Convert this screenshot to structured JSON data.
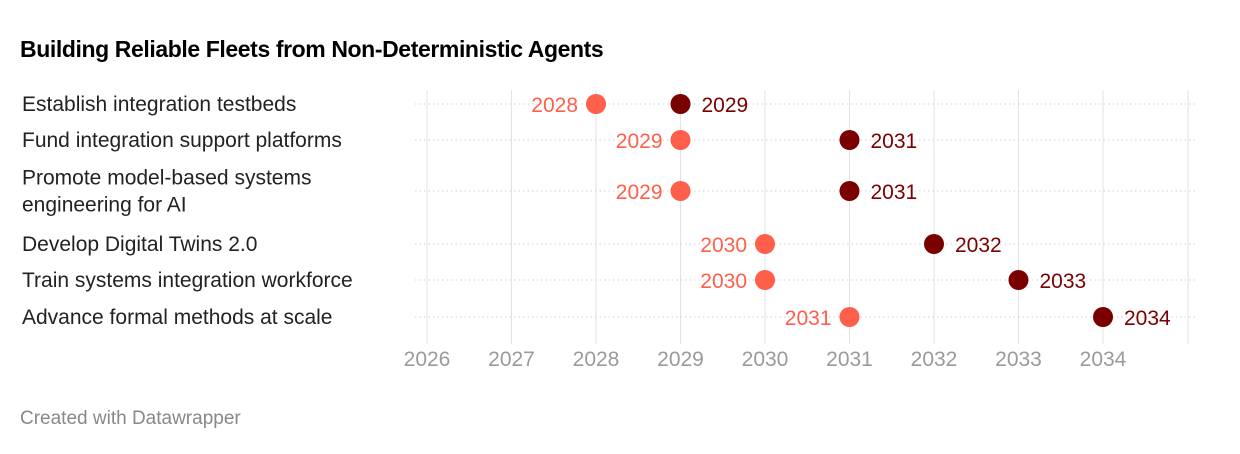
{
  "title": "Building Reliable Fleets from Non-Deterministic Agents",
  "footer": "Created with Datawrapper",
  "colors": {
    "start": "#ff5f4a",
    "end": "#7a0000",
    "grid": "#e3e3e3",
    "tick": "#9a9a9a",
    "label": "#222222"
  },
  "chart_data": {
    "type": "range-dot",
    "title": "Building Reliable Fleets from Non-Deterministic Agents",
    "xlim": [
      2026,
      2034
    ],
    "xticks": [
      "2026",
      "2027",
      "2028",
      "2029",
      "2030",
      "2031",
      "2032",
      "2033",
      "2034"
    ],
    "grid": true,
    "rows": [
      {
        "label": [
          "Establish integration testbeds"
        ],
        "start": 2028,
        "end": 2029
      },
      {
        "label": [
          "Fund integration support platforms"
        ],
        "start": 2029,
        "end": 2031
      },
      {
        "label": [
          "Promote model-based systems",
          "engineering for AI"
        ],
        "start": 2029,
        "end": 2031
      },
      {
        "label": [
          "Develop Digital Twins 2.0"
        ],
        "start": 2030,
        "end": 2032
      },
      {
        "label": [
          "Train systems integration workforce"
        ],
        "start": 2030,
        "end": 2033
      },
      {
        "label": [
          "Advance formal methods at scale"
        ],
        "start": 2031,
        "end": 2034
      }
    ]
  }
}
